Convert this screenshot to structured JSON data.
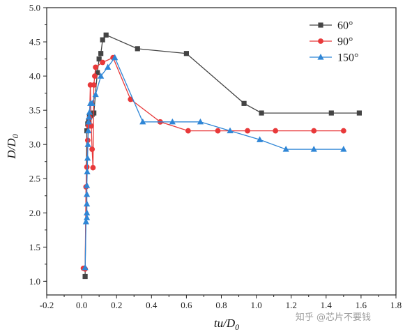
{
  "chart_data": {
    "type": "line",
    "xlabel": "tu/D0",
    "xlabel_main": "tu/D",
    "xlabel_sub": "0",
    "ylabel": "D/D0",
    "ylabel_main": "D/D",
    "ylabel_sub": "0",
    "xlim": [
      -0.2,
      1.8
    ],
    "ylim": [
      0.8,
      5.0
    ],
    "x_ticks": [
      -0.2,
      0.0,
      0.2,
      0.4,
      0.6,
      0.8,
      1.0,
      1.2,
      1.4,
      1.6,
      1.8
    ],
    "x_tick_labels": [
      "-0.2",
      "0.0",
      "0.2",
      "0.4",
      "0.6",
      "0.8",
      "1.0",
      "1.2",
      "1.4",
      "1.6",
      "1.8"
    ],
    "y_ticks": [
      1.0,
      1.5,
      2.0,
      2.5,
      3.0,
      3.5,
      4.0,
      4.5,
      5.0
    ],
    "y_tick_labels": [
      "1.0",
      "1.5",
      "2.0",
      "2.5",
      "3.0",
      "3.5",
      "4.0",
      "4.5",
      "5.0"
    ],
    "grid": false,
    "legend_position": "top-right",
    "series": [
      {
        "name": "60°",
        "color": "#444444",
        "marker": "square",
        "x": [
          0.02,
          0.03,
          0.035,
          0.04,
          0.045,
          0.05,
          0.06,
          0.07,
          0.09,
          0.1,
          0.11,
          0.12,
          0.14,
          0.32,
          0.6,
          0.93,
          1.03,
          1.43,
          1.59
        ],
        "y": [
          1.07,
          3.2,
          3.3,
          3.35,
          3.4,
          3.42,
          3.44,
          3.46,
          4.05,
          4.25,
          4.33,
          4.53,
          4.6,
          4.4,
          4.33,
          3.6,
          3.46,
          3.46,
          3.46
        ]
      },
      {
        "name": "90°",
        "color": "#e8393a",
        "marker": "circle",
        "x": [
          0.01,
          0.02,
          0.025,
          0.03,
          0.035,
          0.04,
          0.045,
          0.05,
          0.055,
          0.06,
          0.065,
          0.07,
          0.075,
          0.08,
          0.12,
          0.18,
          0.28,
          0.45,
          0.61,
          0.78,
          0.95,
          1.11,
          1.33,
          1.5
        ],
        "y": [
          1.19,
          1.18,
          2.38,
          2.67,
          3.06,
          3.27,
          3.39,
          3.87,
          3.27,
          2.93,
          2.66,
          3.87,
          4.0,
          4.13,
          4.2,
          4.27,
          3.66,
          3.33,
          3.2,
          3.2,
          3.2,
          3.2,
          3.2,
          3.2
        ]
      },
      {
        "name": "150°",
        "color": "#2f86d6",
        "marker": "triangle",
        "x": [
          0.02,
          0.025,
          0.03,
          0.03,
          0.03,
          0.03,
          0.03,
          0.032,
          0.034,
          0.036,
          0.038,
          0.04,
          0.042,
          0.045,
          0.05,
          0.06,
          0.08,
          0.11,
          0.15,
          0.19,
          0.35,
          0.52,
          0.68,
          0.85,
          1.02,
          1.17,
          1.33,
          1.5
        ],
        "y": [
          1.2,
          1.87,
          1.93,
          2.0,
          2.13,
          2.27,
          2.4,
          2.6,
          2.8,
          3.0,
          3.2,
          3.33,
          3.4,
          3.47,
          3.6,
          3.6,
          3.73,
          4.0,
          4.13,
          4.27,
          3.33,
          3.33,
          3.33,
          3.2,
          3.07,
          2.93,
          2.93,
          2.93
        ]
      }
    ]
  },
  "watermark": {
    "text": "知乎 @芯片不要钱"
  }
}
